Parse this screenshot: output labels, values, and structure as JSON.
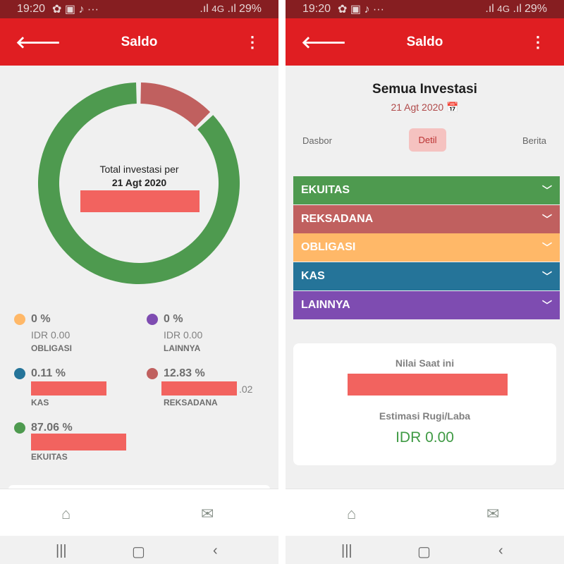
{
  "status": {
    "time": "19:20",
    "battery": "29%",
    "network": "4G"
  },
  "header": {
    "title": "Saldo",
    "back_icon": "arrow-left-icon",
    "menu_icon": "more-vertical-icon"
  },
  "left": {
    "donut_label": "Total investasi per",
    "donut_date": "21 Agt 2020",
    "legend": [
      {
        "pct": "0 %",
        "amount": "IDR 0.00",
        "name": "OBLIGASI",
        "color": "#ffb868",
        "value": 0
      },
      {
        "pct": "0 %",
        "amount": "IDR 0.00",
        "name": "LAINNYA",
        "color": "#7e4cb1",
        "value": 0
      },
      {
        "pct": "0.11 %",
        "amount": "",
        "name": "KAS",
        "color": "#257499",
        "value": 0.11
      },
      {
        "pct": "12.83 %",
        "amount": ".02",
        "name": "REKSADANA",
        "color": "#c0605f",
        "value": 12.83
      },
      {
        "pct": "87.06 %",
        "amount": "",
        "name": "EKUITAS",
        "color": "#4e9a4f",
        "value": 87.06
      }
    ]
  },
  "right": {
    "title": "Semua Investasi",
    "date": "21 Agt 2020",
    "tabs": [
      "Dasbor",
      "Detil",
      "Berita"
    ],
    "active_tab": "Detil",
    "categories": [
      {
        "name": "EKUITAS",
        "color": "#4e9a4f"
      },
      {
        "name": "REKSADANA",
        "color": "#c0605f"
      },
      {
        "name": "OBLIGASI",
        "color": "#ffb868"
      },
      {
        "name": "KAS",
        "color": "#257499"
      },
      {
        "name": "LAINNYA",
        "color": "#7e4cb1"
      }
    ],
    "card": {
      "current_label": "Nilai Saat ini",
      "pl_label": "Estimasi Rugi/Laba",
      "pl_value": "IDR 0.00"
    }
  },
  "nav": {
    "home_icon": "home-icon",
    "mail_icon": "mail-icon"
  }
}
